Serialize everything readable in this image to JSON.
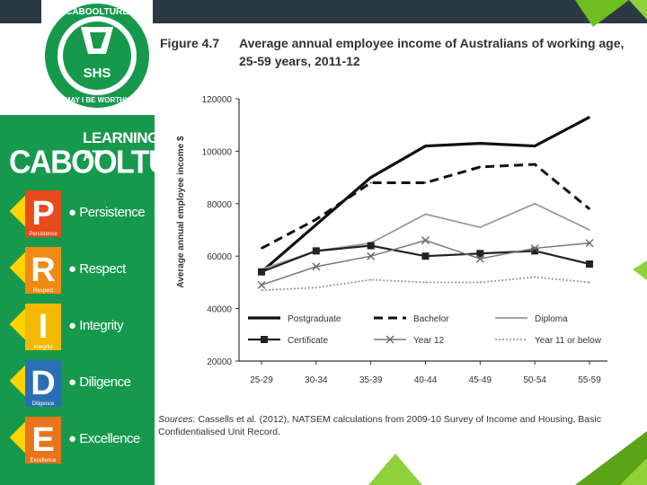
{
  "school": {
    "logo_top": "CABOOLTURE",
    "logo_mid": "SHS",
    "motto": "MAY I BE WORTHY"
  },
  "left_panel": {
    "title_line1": "LEARNING AT",
    "title_line2": "CABOOLTURE",
    "values": [
      {
        "letter": "P",
        "sub": "Persistence",
        "label": "Persistence",
        "color": "#e84a1c"
      },
      {
        "letter": "R",
        "sub": "Respect",
        "label": "Respect",
        "color": "#f08a14"
      },
      {
        "letter": "I",
        "sub": "Integrity",
        "label": "Integrity",
        "color": "#f5b800"
      },
      {
        "letter": "D",
        "sub": "Diligence",
        "label": "Diligence",
        "color": "#2a6fb3"
      },
      {
        "letter": "E",
        "sub": "Excellence",
        "label": "Excellence",
        "color": "#e8741c"
      }
    ]
  },
  "figure": {
    "number": "Figure 4.7",
    "title": "Average annual employee income of Australians of working age, 25-59 years, 2011-12",
    "sources_label": "Sources",
    "sources_text": ": Cassells et al. (2012), NATSEM calculations from 2009-10 Survey of Income and Housing, Basic Confidentialised Unit Record."
  },
  "chart_data": {
    "type": "line",
    "title": "Average annual employee income of Australians of working age, 25-59 years, 2011-12",
    "xlabel": "",
    "ylabel": "Average annual employee income $",
    "categories": [
      "25-29",
      "30-34",
      "35-39",
      "40-44",
      "45-49",
      "50-54",
      "55-59"
    ],
    "ylim": [
      20000,
      120000
    ],
    "yticks": [
      "20000",
      "40000",
      "60000",
      "80000",
      "100000",
      "120000"
    ],
    "grid": false,
    "legend": "bottom",
    "series": [
      {
        "name": "Postgraduate",
        "values": [
          54000,
          72000,
          90000,
          102000,
          103000,
          102000,
          113000
        ],
        "style": "solid-thick",
        "color": "#111111"
      },
      {
        "name": "Bachelor",
        "values": [
          63000,
          74000,
          88000,
          88000,
          94000,
          95000,
          78000
        ],
        "style": "dashed",
        "color": "#111111"
      },
      {
        "name": "Diploma",
        "values": [
          55000,
          62000,
          65000,
          76000,
          71000,
          80000,
          70000
        ],
        "style": "solid-gray",
        "color": "#999999"
      },
      {
        "name": "Certificate",
        "values": [
          54000,
          62000,
          64000,
          60000,
          61000,
          62000,
          57000
        ],
        "style": "square-marker",
        "color": "#222222"
      },
      {
        "name": "Year 12",
        "values": [
          49000,
          56000,
          60000,
          66000,
          59000,
          63000,
          65000
        ],
        "style": "x-marker",
        "color": "#777777"
      },
      {
        "name": "Year 11 or below",
        "values": [
          47000,
          48000,
          51000,
          50000,
          50000,
          52000,
          50000
        ],
        "style": "dotted",
        "color": "#999999"
      }
    ]
  },
  "accent_color": "#7dc51c"
}
